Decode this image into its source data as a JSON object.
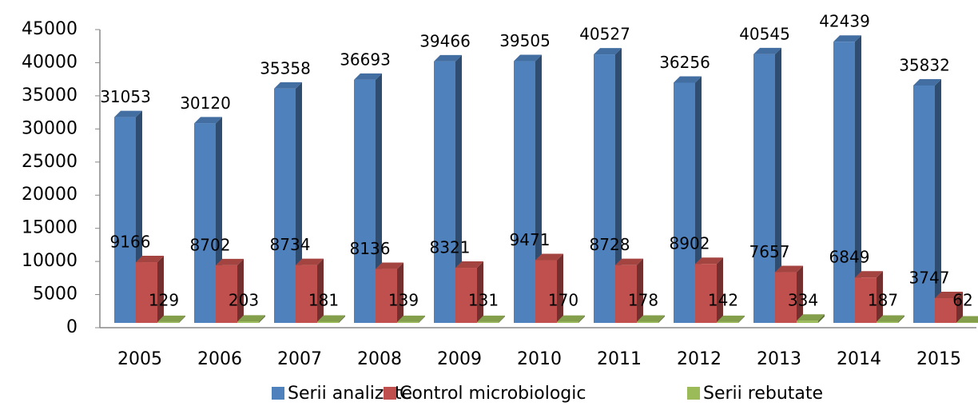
{
  "chart_data": {
    "type": "bar3d",
    "categories": [
      "2005",
      "2006",
      "2007",
      "2008",
      "2009",
      "2010",
      "2011",
      "2012",
      "2013",
      "2014",
      "2015"
    ],
    "series": [
      {
        "name": "Serii analizate",
        "color": "#4f81bd",
        "values": [
          31053,
          30120,
          35358,
          36693,
          39466,
          39505,
          40527,
          36256,
          40545,
          42439,
          35832
        ]
      },
      {
        "name": "Control microbiologic",
        "color": "#c0504d",
        "values": [
          9166,
          8702,
          8734,
          8136,
          8321,
          9471,
          8728,
          8902,
          7657,
          6849,
          3747
        ]
      },
      {
        "name": "Serii rebutate",
        "color": "#9bbb59",
        "values": [
          129,
          203,
          181,
          139,
          131,
          170,
          178,
          142,
          334,
          187,
          62
        ]
      }
    ],
    "ylim": [
      0,
      45000
    ],
    "yticks": [
      0,
      5000,
      10000,
      15000,
      20000,
      25000,
      30000,
      35000,
      40000,
      45000
    ],
    "legend": "bottom"
  }
}
